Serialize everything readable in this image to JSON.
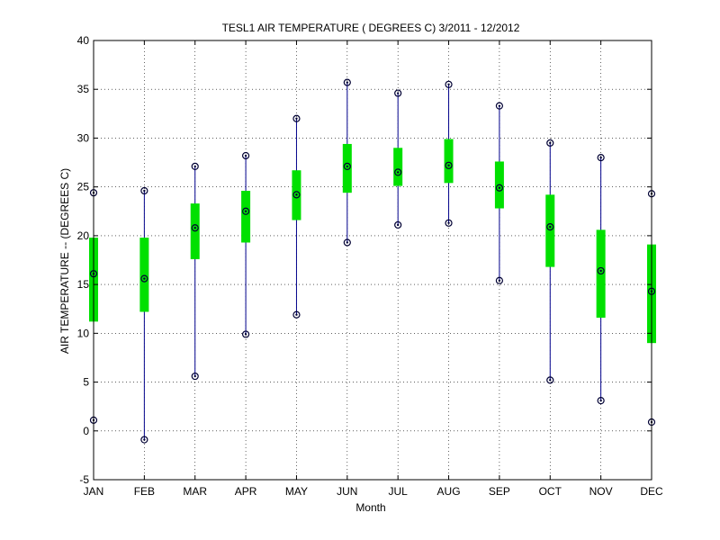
{
  "chart_data": {
    "type": "box",
    "title": "TESL1  AIR TEMPERATURE ( DEGREES C) 3/2011 - 12/2012",
    "xlabel": "Month",
    "ylabel": "AIR TEMPERATURE -- (DEGREES C)",
    "ylim": [
      -5,
      40
    ],
    "yticks": [
      "-5",
      "0",
      "5",
      "10",
      "15",
      "20",
      "25",
      "30",
      "35",
      "40"
    ],
    "grid": true,
    "categories": [
      "JAN",
      "FEB",
      "MAR",
      "APR",
      "MAY",
      "JUN",
      "JUL",
      "AUG",
      "SEP",
      "OCT",
      "NOV",
      "DEC"
    ],
    "series": [
      {
        "min": [
          1.1,
          -0.9,
          5.6,
          9.9,
          11.9,
          19.3,
          21.1,
          21.3,
          15.4,
          5.2,
          3.1,
          0.9
        ],
        "q1": [
          11.2,
          12.2,
          17.6,
          19.3,
          21.6,
          24.4,
          25.1,
          25.4,
          22.8,
          16.8,
          11.6,
          9.0
        ],
        "median": [
          16.1,
          15.6,
          20.8,
          22.5,
          24.2,
          27.1,
          26.5,
          27.2,
          24.9,
          20.9,
          16.4,
          14.3
        ],
        "q3": [
          19.8,
          19.8,
          23.3,
          24.6,
          26.7,
          29.4,
          29.0,
          29.9,
          27.6,
          24.2,
          20.6,
          19.1
        ],
        "max": [
          24.4,
          24.6,
          27.1,
          28.2,
          32.0,
          35.7,
          34.6,
          35.5,
          33.3,
          29.5,
          28.0,
          24.3
        ]
      }
    ],
    "colors": {
      "whisker": "#00008b",
      "box": "#00e000",
      "marker": "#000033"
    }
  }
}
